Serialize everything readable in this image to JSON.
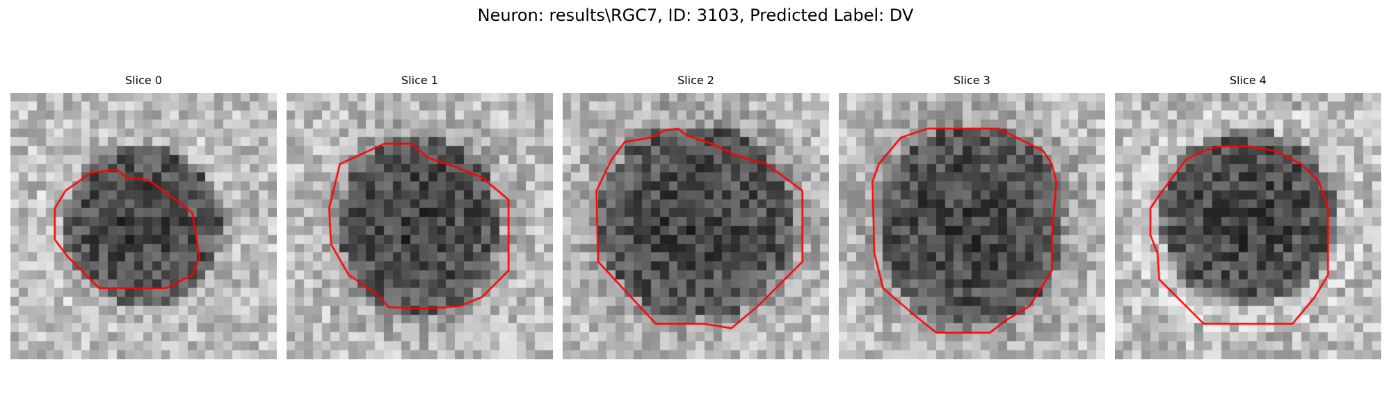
{
  "figure": {
    "title": "Neuron: results\\RGC7, ID: 3103, Predicted Label: DV"
  },
  "slices": [
    {
      "title": "Slice 0",
      "outline_color": "#ff0000",
      "seed": 11
    },
    {
      "title": "Slice 1",
      "outline_color": "#ff0000",
      "seed": 23
    },
    {
      "title": "Slice 2",
      "outline_color": "#ff0000",
      "seed": 37
    },
    {
      "title": "Slice 3",
      "outline_color": "#ff0000",
      "seed": 51
    },
    {
      "title": "Slice 4",
      "outline_color": "#ff0000",
      "seed": 67
    }
  ],
  "colormap": "gray"
}
